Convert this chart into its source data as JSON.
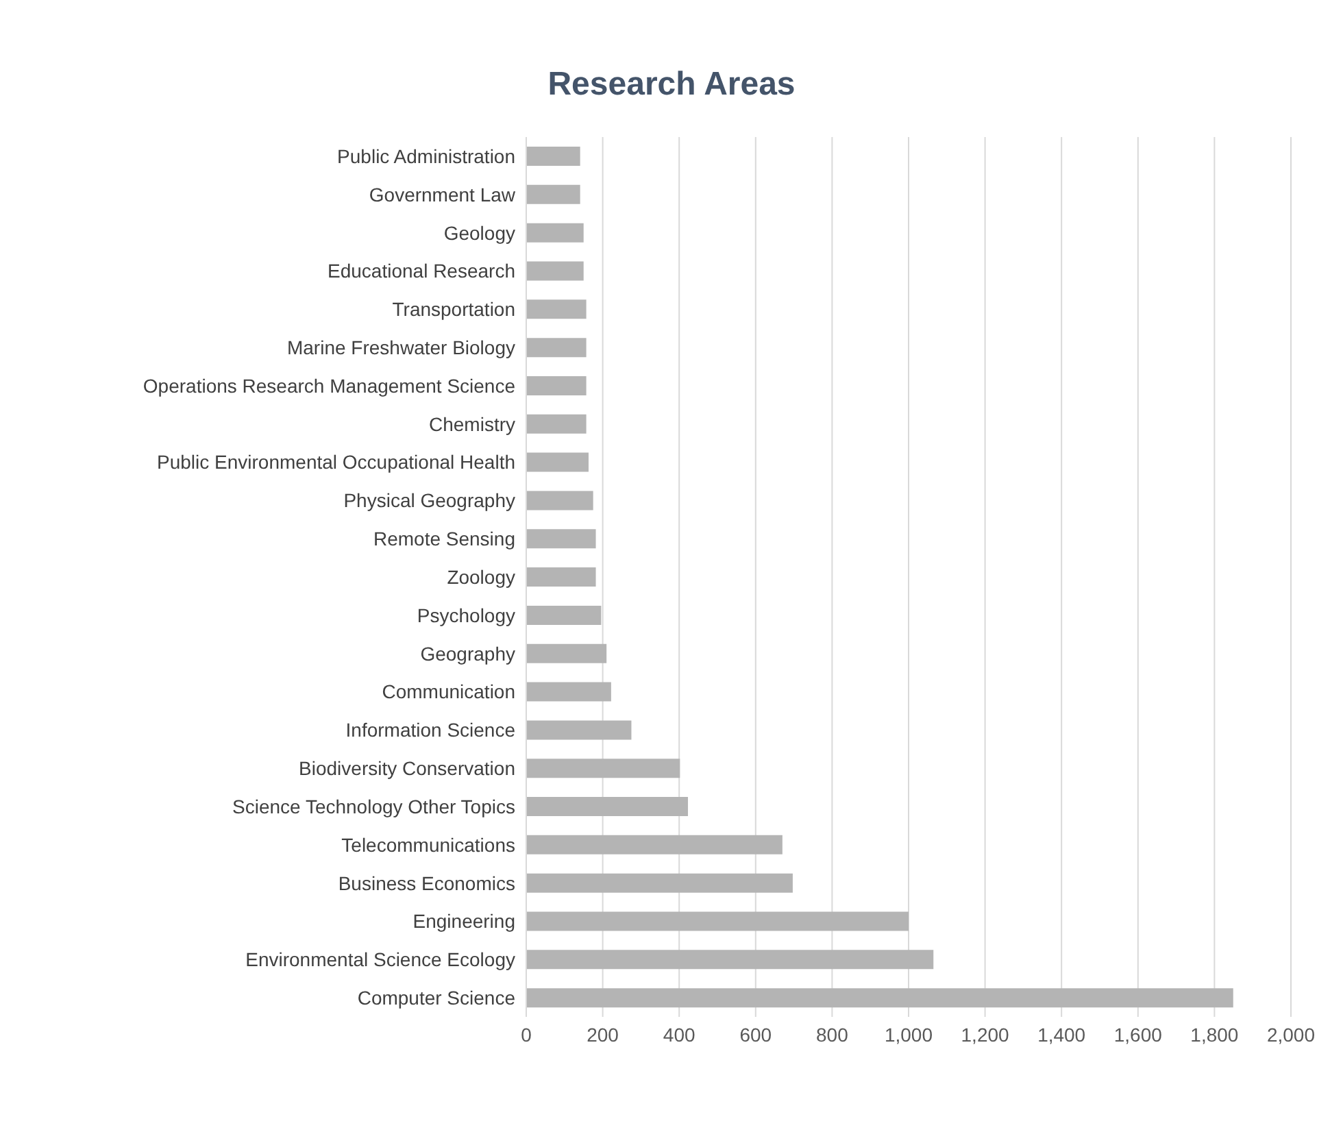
{
  "chart_data": {
    "type": "bar",
    "orientation": "horizontal",
    "title": "Research Areas",
    "categories": [
      "Public Administration",
      "Government Law",
      "Geology",
      "Educational Research",
      "Transportation",
      "Marine Freshwater Biology",
      "Operations Research Management Science",
      "Chemistry",
      "Public Environmental Occupational Health",
      "Physical Geography",
      "Remote Sensing",
      "Zoology",
      "Psychology",
      "Geography",
      "Communication",
      "Information Science",
      "Biodiversity Conservation",
      "Science Technology Other Topics",
      "Telecommunications",
      "Business Economics",
      "Engineering",
      "Environmental Science Ecology",
      "Computer Science"
    ],
    "values": [
      141,
      141,
      150,
      150,
      157,
      157,
      157,
      157,
      163,
      175,
      182,
      182,
      196,
      210,
      222,
      275,
      402,
      423,
      670,
      697,
      1000,
      1065,
      1849
    ],
    "color": "#b4b4b4",
    "xlim": [
      0,
      2000
    ],
    "xticks": [
      {
        "value": 0,
        "label": "0"
      },
      {
        "value": 200,
        "label": "200"
      },
      {
        "value": 400,
        "label": "400"
      },
      {
        "value": 600,
        "label": "600"
      },
      {
        "value": 800,
        "label": "800"
      },
      {
        "value": 1000,
        "label": "1,000"
      },
      {
        "value": 1200,
        "label": "1,200"
      },
      {
        "value": 1400,
        "label": "1,400"
      },
      {
        "value": 1600,
        "label": "1,600"
      },
      {
        "value": 1800,
        "label": "1,800"
      },
      {
        "value": 2000,
        "label": "2,000"
      }
    ],
    "grid": "x",
    "legend": false
  }
}
